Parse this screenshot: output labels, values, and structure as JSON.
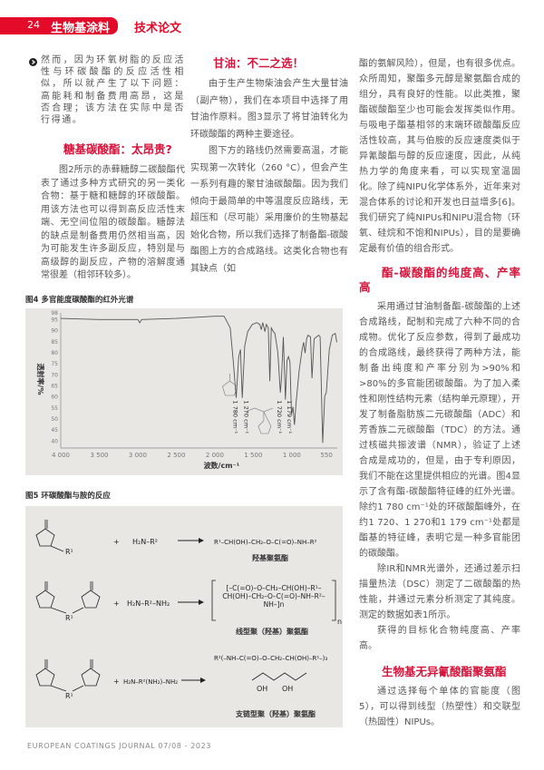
{
  "header": {
    "page_number": "24",
    "section": "生物基涂料",
    "category": "技术论文",
    "accent": "#e30a2a"
  },
  "col1": {
    "intro": "然而，因为环氧树脂的反应活性与环碳酸酯的反应活性相似，所以就产生了以下问题：高能耗和制备费用高昂，这是否合理；该方法在实际中是否行得通。",
    "heading": "糖基碳酸酯：太昂贵?",
    "para": "图2所示的赤藓糖醇二碳酸酯代表了通过多种方式研究的另一类化合物：基于糖和糖醇的环碳酸酯。用该方法也可以得到高反应活性末端、无空间位阻的碳酸酯。糖醇法的缺点是制备费用仍然相当高，因为可能发生许多副反应，特别是与高级醇的副反应，产物的溶解度通常很差（相邻环较多）。"
  },
  "col2": {
    "heading": "甘油：不二之选！",
    "para1": "由于生产生物柴油会产生大量甘油（副产物），我们在本项目中选择了用甘油作原料。图3显示了将甘油转化为环碳酸酯的两种主要途径。",
    "para2": "图下方的路线仍然需要高温，才能实现第一次转化（260 °C），但会产生一系列有趣的聚甘油碳酸酯。因为我们倾向于最简单的中等温度反应路线，无超压和（尽可能）采用廉价的生物基起始化合物，所以我们选择了制备酯-碳酸酯图上方的合成路线。这类化合物也有其缺点（如"
  },
  "col3": {
    "para1": "酯的氨解风险），但是，也有很多优点。众所周知，聚酯多元醇是聚氨酯合成的组分，具有良好的性能。以此类推，聚酯碳酸酯至少也可能会发挥类似作用。与吸电子酯基相邻的末端环碳酸酯反应活性较高，其与伯胺的反应速度类似于异氰酸酯与醇的反应速度，因此，从纯热力学的角度来看，可以实现室温固化。除了纯NIPU化学体系外，近年来对混合体系的讨论和开发也日益增多[6]。我们研究了纯NIPUs和NIPU混合物（环氧、硅烷和不饱和NIPUs），目的是要确定最有价值的组合形式。",
    "heading1": "酯-碳酸酯的纯度高、产率高",
    "para2": "采用通过甘油制备酯-碳酸酯的上述合成路线，配制和完成了六种不同的合成物。优化了反应参数，得到了最成功的合成路线，最终获得了两种方法，能制备出纯度和产率分别为>90%和>80%的多官能团碳酸酯。为了加入柔性和刚性结构元素（结构单元原理），开发了制备脂肪族二元碳酸酯（ADC）和芳香族二元碳酸酯（TDC）的方法。通过核磁共振波谱（NMR），验证了上述合成是成功的，但是，由于专利原因，我们不能在这里提供相应的光谱。图4显示了含有酯-碳酸酯特征峰的红外光谱。除约1 780 cm⁻¹处的环碳酸酯峰外，在约1 720、1 270和1 179 cm⁻¹处都是酯基的特征峰，表明它是一种多官能团的碳酸酯。",
    "para3": "除IR和NMR光谱外，还通过差示扫描量热法（DSC）测定了二碳酸酯的热性能，并通过元素分析测定了其纯度。测定的数据如表1所示。",
    "para4": "获得的目标化合物纯度高、产率高。",
    "heading2": "生物基无异氰酸酯聚氨酯",
    "para5": "通过选择每个单体的官能度（图5），可以得到线型（热塑性）和交联型（热固性）NIPUs。"
  },
  "figure4": {
    "caption": "图4 多官能度碳酸酯的红外光谱",
    "chart_data": {
      "type": "line",
      "xlabel": "波数/cm⁻¹",
      "ylabel": "透射率/%",
      "xlim": [
        4000,
        410
      ],
      "ylim": [
        38,
        98
      ],
      "x_reversed": true,
      "grid": false,
      "xticks": [
        4000,
        3500,
        3000,
        2500,
        2000,
        1500,
        1000,
        550
      ],
      "xtick_labels": [
        "4 000",
        "3 500",
        "3 000",
        "2 500",
        "2 000",
        "1 500",
        "1 000",
        "550"
      ],
      "yticks": [
        98,
        95,
        90,
        85,
        80,
        75,
        70,
        65,
        60,
        55,
        50,
        45,
        40
      ],
      "series": [
        {
          "color": "#555555",
          "points": [
            [
              4000,
              95.5
            ],
            [
              3500,
              95
            ],
            [
              3000,
              95
            ],
            [
              2975,
              93.5
            ],
            [
              2950,
              95
            ],
            [
              2500,
              95.5
            ],
            [
              2000,
              96.5
            ],
            [
              1880,
              96.5
            ],
            [
              1847,
              94.4
            ],
            [
              1800,
              91.2
            ],
            [
              1761,
              76.5
            ],
            [
              1722,
              59.5
            ],
            [
              1690,
              78.2
            ],
            [
              1667,
              81.4
            ],
            [
              1643,
              59.5
            ],
            [
              1612,
              83
            ],
            [
              1573,
              89.5
            ],
            [
              1514,
              92.8
            ],
            [
              1455,
              93.6
            ],
            [
              1416,
              92.8
            ],
            [
              1396,
              90.4
            ],
            [
              1377,
              93.6
            ],
            [
              1349,
              89.5
            ],
            [
              1330,
              92.8
            ],
            [
              1306,
              91.2
            ],
            [
              1286,
              67
            ],
            [
              1267,
              91.2
            ],
            [
              1239,
              89.5
            ],
            [
              1220,
              88.7
            ],
            [
              1181,
              79.8
            ],
            [
              1149,
              61.9
            ],
            [
              1134,
              68.4
            ],
            [
              1110,
              87.1
            ],
            [
              1083,
              58.7
            ],
            [
              1063,
              76.5
            ],
            [
              1043,
              78.2
            ],
            [
              1024,
              75.7
            ],
            [
              1004,
              52.1
            ],
            [
              985,
              55.4
            ],
            [
              965,
              47.3
            ],
            [
              945,
              57
            ],
            [
              906,
              71.7
            ],
            [
              867,
              81.4
            ],
            [
              847,
              84.7
            ],
            [
              828,
              79.8
            ],
            [
              808,
              86.3
            ],
            [
              789,
              87.9
            ],
            [
              757,
              87.1
            ],
            [
              738,
              68.4
            ],
            [
              710,
              86.3
            ],
            [
              679,
              87.1
            ],
            [
              651,
              87.9
            ],
            [
              632,
              87.1
            ],
            [
              600,
              39.1
            ],
            [
              573,
              60.3
            ],
            [
              553,
              61.9
            ],
            [
              514,
              81.4
            ],
            [
              475,
              87.9
            ],
            [
              436,
              88.7
            ],
            [
              416,
              84.7
            ]
          ]
        }
      ],
      "annotations": [
        {
          "text": "1 780 cm⁻¹",
          "x": 1722
        },
        {
          "text": "1 270 cm⁻¹",
          "x": 1643
        },
        {
          "text": "1 720 cm⁻¹",
          "x": 1149
        },
        {
          "text": "1 179 cm⁻¹",
          "x": 1083
        }
      ]
    }
  },
  "figure5": {
    "caption": "图5 环碳酸酯与胺的反应",
    "plus": "+",
    "rows": [
      {
        "amine": "H₂N–R²",
        "product": "羟基聚氨酯",
        "product_formula": "R¹–CH(OH)–CH₂–O–C(=O)–NH–R²"
      },
      {
        "amine": "H₂N–R²–NH₂",
        "product": "线型聚（羟基）聚氨酯",
        "product_formula": "[–C(=O)–O–CH₂–CH(OH)–R¹–CH(OH)–CH₂–O–C(=O)–NH–R²–NH–]n"
      },
      {
        "amine": "H₂N–R²(NH₂)–NH₂",
        "product": "支链型聚（羟基）聚氨酯",
        "product_formula": "R²(–NH–C(=O)–O–CH₂–CH(OH)–R¹–)₃"
      }
    ],
    "atoms": {
      "o": "O",
      "r1": "R¹",
      "oh": "OH",
      "n": "n"
    }
  },
  "footer": "EUROPEAN COATINGS JOURNAL 07/08 - 2023"
}
